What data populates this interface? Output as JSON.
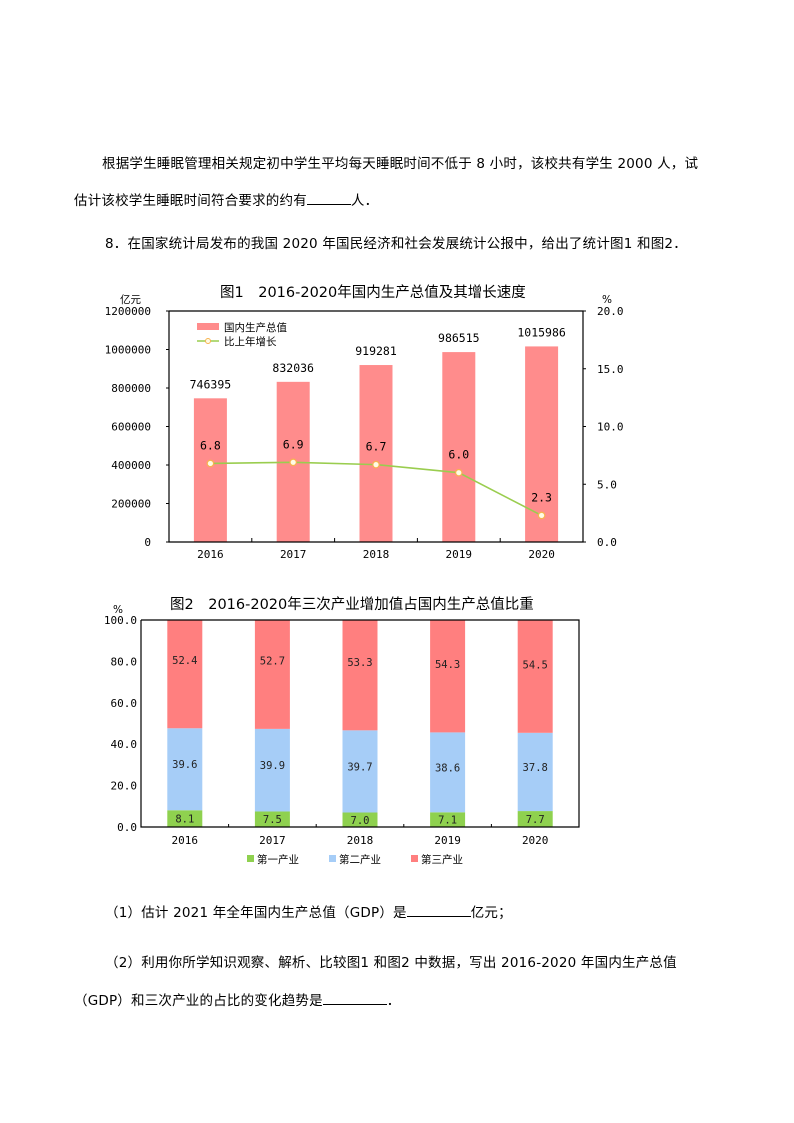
{
  "paragraphs": {
    "p1_line1": "根据学生睡眠管理相关规定初中学生平均每天睡眠时间不低于 8 小时，该校共有学生 2000 人，试",
    "p1_line2_before": "估计该校学生睡眠时间符合要求的约有",
    "p1_line2_after": "人．",
    "q8": "8．在国家统计局发布的我国 2020 年国民经济和社会发展统计公报中，给出了统计图1 和图2．",
    "sub1_before": "（1）估计 2021 年全年国内生产总值（GDP）是",
    "sub1_after": "亿元；",
    "sub2_line1": "（2）利用你所学知识观察、解析、比较图1 和图2 中数据，写出 2016-2020 年国内生产总值",
    "sub2_line2_before": "（GDP）和三次产业的占比的变化趋势是",
    "sub2_line2_after": "．"
  },
  "chart_data": [
    {
      "type": "bar",
      "title": "图1　2016-2020年国内生产总值及其增长速度",
      "xlabel": "",
      "ylabel": "亿元",
      "ylabel_right": "%",
      "categories": [
        "2016",
        "2017",
        "2018",
        "2019",
        "2020"
      ],
      "ylim": [
        0,
        1200000
      ],
      "ylim_right": [
        0,
        20
      ],
      "yticks": [
        "0",
        "200000",
        "400000",
        "600000",
        "800000",
        "1000000",
        "1200000"
      ],
      "yticks_right": [
        "0.0",
        "5.0",
        "10.0",
        "15.0",
        "20.0"
      ],
      "legend_position": "top-left inside",
      "grid": false,
      "series": [
        {
          "name": "国内生产总值",
          "type": "bar",
          "axis": "left",
          "color": "#ff8c8c",
          "values": [
            746395,
            832036,
            919281,
            986515,
            1015986
          ],
          "labels": [
            "746395",
            "832036",
            "919281",
            "986515",
            "1015986"
          ]
        },
        {
          "name": "比上年增长",
          "type": "line",
          "axis": "right",
          "color": "#9acd4f",
          "values": [
            6.8,
            6.9,
            6.7,
            6.0,
            2.3
          ],
          "labels": [
            "6.8",
            "6.9",
            "6.7",
            "6.0",
            "2.3"
          ]
        }
      ]
    },
    {
      "type": "bar",
      "stacked": true,
      "title": "图2　2016-2020年三次产业增加值占国内生产总值比重",
      "xlabel": "",
      "ylabel": "%",
      "categories": [
        "2016",
        "2017",
        "2018",
        "2019",
        "2020"
      ],
      "ylim": [
        0,
        100
      ],
      "yticks": [
        "0.0",
        "20.0",
        "40.0",
        "60.0",
        "80.0",
        "100.0"
      ],
      "legend_position": "bottom",
      "grid": false,
      "series": [
        {
          "name": "第一产业",
          "color": "#8fd14f",
          "values": [
            8.1,
            7.5,
            7.0,
            7.1,
            7.7
          ],
          "labels": [
            "8.1",
            "7.5",
            "7.0",
            "7.1",
            "7.7"
          ]
        },
        {
          "name": "第二产业",
          "color": "#a6cdf7",
          "values": [
            39.6,
            39.9,
            39.7,
            38.6,
            37.8
          ],
          "labels": [
            "39.6",
            "39.9",
            "39.7",
            "38.6",
            "37.8"
          ]
        },
        {
          "name": "第三产业",
          "color": "#ff7f7f",
          "values": [
            52.4,
            52.7,
            53.3,
            54.3,
            54.5
          ],
          "labels": [
            "52.4",
            "52.7",
            "53.3",
            "54.3",
            "54.5"
          ]
        }
      ]
    }
  ]
}
